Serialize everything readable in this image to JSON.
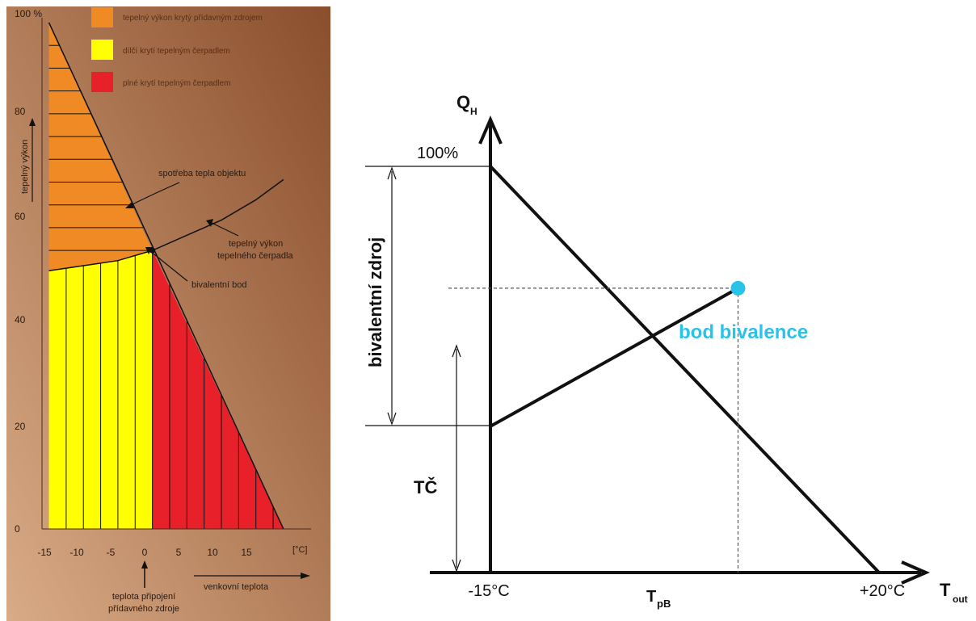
{
  "colors": {
    "bg_light": "#d9ab86",
    "bg_dark": "#8a4e2c",
    "orange": "#f08a24",
    "yellow": "#ffff00",
    "red": "#e8202a",
    "line": "#111111",
    "accent": "#29c3ea"
  },
  "chart_data": [
    {
      "type": "area",
      "title": "",
      "legend": [
        {
          "label": "tepelný výkon krytý přídavným zdrojem",
          "color": "#f08a24"
        },
        {
          "label": "dílčí krytí tepelným čerpadlem",
          "color": "#ffff00"
        },
        {
          "label": "plné krytí tepelným čerpadlem",
          "color": "#e8202a"
        }
      ],
      "legend_position": "top",
      "ylabel": "tepelný výkon",
      "xlabel": "venkovní teplota",
      "x_unit": "[°C]",
      "xlim": [
        -16,
        23
      ],
      "ylim": [
        0,
        100
      ],
      "xticks": [
        "-15",
        "-10",
        "-5",
        "0",
        "5",
        "10",
        "15"
      ],
      "yticks": [
        "0",
        "20",
        "40",
        "60",
        "80",
        "100 %"
      ],
      "series": [
        {
          "name": "spotřeba tepla objektu",
          "x": [
            -15,
            19
          ],
          "y": [
            100,
            0
          ]
        },
        {
          "name": "tepelný výkon tepelného čerpadla",
          "x": [
            -15,
            -10,
            -5,
            0,
            5,
            10,
            15,
            19
          ],
          "y": [
            51,
            52,
            53,
            55,
            58,
            61,
            65,
            69
          ]
        }
      ],
      "bivalent_point": {
        "x": 0,
        "y": 55
      },
      "annotations": {
        "demand": "spotřeba tepla objektu",
        "hp_output_line1": "tepelný výkon",
        "hp_output_line2": "tepelného čerpadla",
        "bivalent": "bivalentní bod",
        "connect_line1": "teplota připojení",
        "connect_line2": "přídavného zdroje"
      }
    },
    {
      "type": "line",
      "title": "",
      "ylabel": "Q",
      "ylabel_sub": "H",
      "xlabel": "T",
      "xlabel_sub": "out",
      "xlim": [
        -15,
        22
      ],
      "ylim": [
        0,
        120
      ],
      "x_tick_left": "-15°C",
      "x_tick_right": "+20°C",
      "y_tick_top": "100%",
      "tpb_label": "T",
      "tpb_sub": "pB",
      "series": [
        {
          "name": "",
          "x": [
            -15,
            20
          ],
          "y": [
            100,
            0
          ]
        },
        {
          "name": "",
          "x": [
            -15,
            7.3
          ],
          "y": [
            36,
            70
          ]
        }
      ],
      "bivalence_point": {
        "x": 7.3,
        "y": 70,
        "label": "bod bivalence"
      },
      "brackets": {
        "bivalent": "bivalentní zdroj",
        "heat_pump": "TČ"
      }
    }
  ]
}
